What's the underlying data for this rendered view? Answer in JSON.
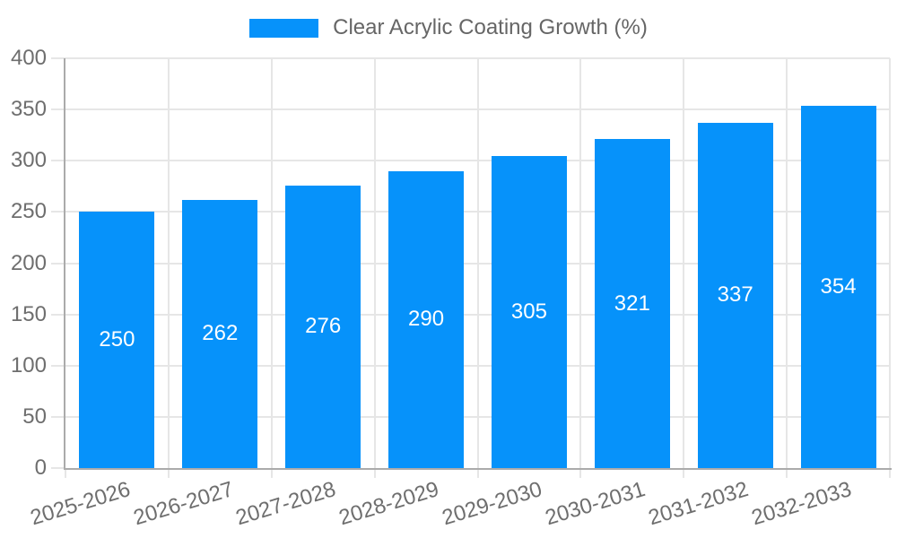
{
  "legend": {
    "label": "Clear Acrylic Coating Growth (%)"
  },
  "chart_data": {
    "type": "bar",
    "title": "Clear Acrylic Coating Growth (%)",
    "categories": [
      "2025-2026",
      "2026-2027",
      "2027-2028",
      "2028-2029",
      "2029-2030",
      "2030-2031",
      "2031-2032",
      "2032-2033"
    ],
    "values": [
      250,
      262,
      276,
      290,
      305,
      321,
      337,
      354
    ],
    "xlabel": "",
    "ylabel": "",
    "ylim": [
      0,
      400
    ],
    "y_tick_step": 50,
    "y_ticks": [
      0,
      50,
      100,
      150,
      200,
      250,
      300,
      350,
      400
    ],
    "grid": true,
    "legend_position": "top",
    "x_tick_rotation_deg": -17,
    "colors": {
      "bar": "#0692FA",
      "bar_label_text": "#FFFFFF",
      "axis_line": "#ABABAB",
      "gridline": "#E6E6E6",
      "tick_label": "#6E6E6E",
      "legend_text": "#666666",
      "background": "#FFFFFF"
    }
  }
}
